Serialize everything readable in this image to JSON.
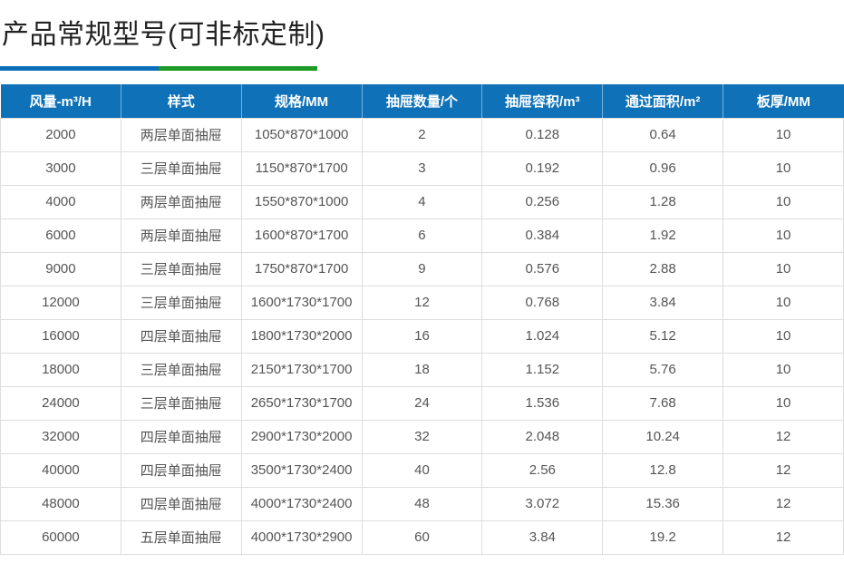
{
  "page": {
    "title": "产品常规型号(可非标定制)"
  },
  "colors": {
    "header_bg": "#0f72b8",
    "underline_blue": "#0d6eb8",
    "underline_green": "#1d9a26",
    "row_border": "#dddddd",
    "body_text": "#555555"
  },
  "table": {
    "columns": [
      "风量-m³/H",
      "样式",
      "规格/MM",
      "抽屉数量/个",
      "抽屉容积/m³",
      "通过面积/m²",
      "板厚/MM"
    ],
    "rows": [
      [
        "2000",
        "两层单面抽屉",
        "1050*870*1000",
        "2",
        "0.128",
        "0.64",
        "10"
      ],
      [
        "3000",
        "三层单面抽屉",
        "1150*870*1700",
        "3",
        "0.192",
        "0.96",
        "10"
      ],
      [
        "4000",
        "两层单面抽屉",
        "1550*870*1000",
        "4",
        "0.256",
        "1.28",
        "10"
      ],
      [
        "6000",
        "两层单面抽屉",
        "1600*870*1700",
        "6",
        "0.384",
        "1.92",
        "10"
      ],
      [
        "9000",
        "三层单面抽屉",
        "1750*870*1700",
        "9",
        "0.576",
        "2.88",
        "10"
      ],
      [
        "12000",
        "三层单面抽屉",
        "1600*1730*1700",
        "12",
        "0.768",
        "3.84",
        "10"
      ],
      [
        "16000",
        "四层单面抽屉",
        "1800*1730*2000",
        "16",
        "1.024",
        "5.12",
        "10"
      ],
      [
        "18000",
        "三层单面抽屉",
        "2150*1730*1700",
        "18",
        "1.152",
        "5.76",
        "10"
      ],
      [
        "24000",
        "三层单面抽屉",
        "2650*1730*1700",
        "24",
        "1.536",
        "7.68",
        "10"
      ],
      [
        "32000",
        "四层单面抽屉",
        "2900*1730*2000",
        "32",
        "2.048",
        "10.24",
        "12"
      ],
      [
        "40000",
        "四层单面抽屉",
        "3500*1730*2400",
        "40",
        "2.56",
        "12.8",
        "12"
      ],
      [
        "48000",
        "四层单面抽屉",
        "4000*1730*2400",
        "48",
        "3.072",
        "15.36",
        "12"
      ],
      [
        "60000",
        "五层单面抽屉",
        "4000*1730*2900",
        "60",
        "3.84",
        "19.2",
        "12"
      ]
    ]
  }
}
